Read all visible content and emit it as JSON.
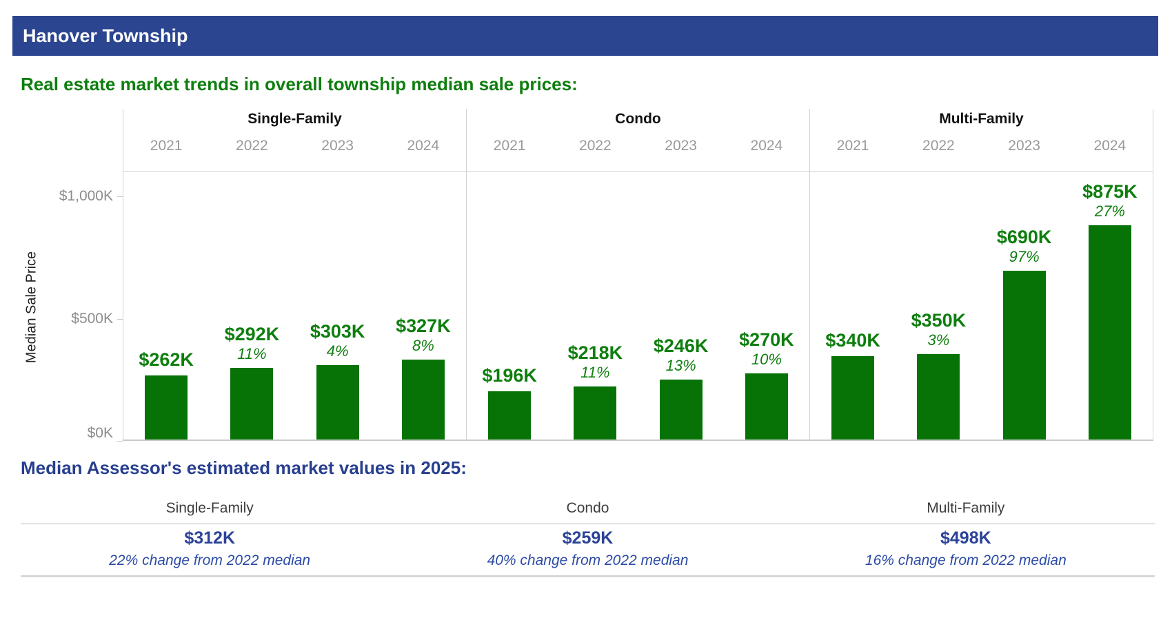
{
  "window": {
    "title": "Hanover Township"
  },
  "colors": {
    "header_bg": "#2B4590",
    "header_text": "#FFFFFF",
    "chart_title_green": "#0E7E0E",
    "bar_green": "#077307",
    "bar_label_green": "#0E7E0E",
    "axis_gray": "#8C8C8C",
    "year_gray": "#999999",
    "assessor_title_blue": "#283F8F",
    "assessor_value_blue": "#2B4397",
    "assessor_change_blue": "#2C4BA6"
  },
  "chart_data": {
    "type": "bar",
    "title": "Real estate market trends in overall township median sale prices:",
    "xlabel": "",
    "ylabel": "Median Sale Price",
    "categories": [
      "2021",
      "2022",
      "2023",
      "2024"
    ],
    "ylim": [
      0,
      1100
    ],
    "grid": false,
    "legend_position": "none",
    "y_ticks": [
      {
        "label": "$1,000K",
        "value": 1000
      },
      {
        "label": "$500K",
        "value": 500
      },
      {
        "label": "$0K",
        "value": 0
      }
    ],
    "series": [
      {
        "name": "Single-Family",
        "values": [
          262,
          292,
          303,
          327
        ],
        "bar_labels": [
          "$262K",
          "$292K",
          "$303K",
          "$327K"
        ],
        "pct_change_labels": [
          null,
          "11%",
          "4%",
          "8%"
        ]
      },
      {
        "name": "Condo",
        "values": [
          196,
          218,
          246,
          270
        ],
        "bar_labels": [
          "$196K",
          "$218K",
          "$246K",
          "$270K"
        ],
        "pct_change_labels": [
          null,
          "11%",
          "13%",
          "10%"
        ]
      },
      {
        "name": "Multi-Family",
        "values": [
          340,
          350,
          690,
          875
        ],
        "bar_labels": [
          "$340K",
          "$350K",
          "$690K",
          "$875K"
        ],
        "pct_change_labels": [
          null,
          "3%",
          "97%",
          "27%"
        ]
      }
    ]
  },
  "assessor": {
    "title": "Median Assessor's estimated market values in 2025:",
    "columns": [
      {
        "category": "Single-Family",
        "value": "$312K",
        "change": "22% change from 2022 median"
      },
      {
        "category": "Condo",
        "value": "$259K",
        "change": "40% change from 2022 median"
      },
      {
        "category": "Multi-Family",
        "value": "$498K",
        "change": "16% change from 2022 median"
      }
    ]
  }
}
